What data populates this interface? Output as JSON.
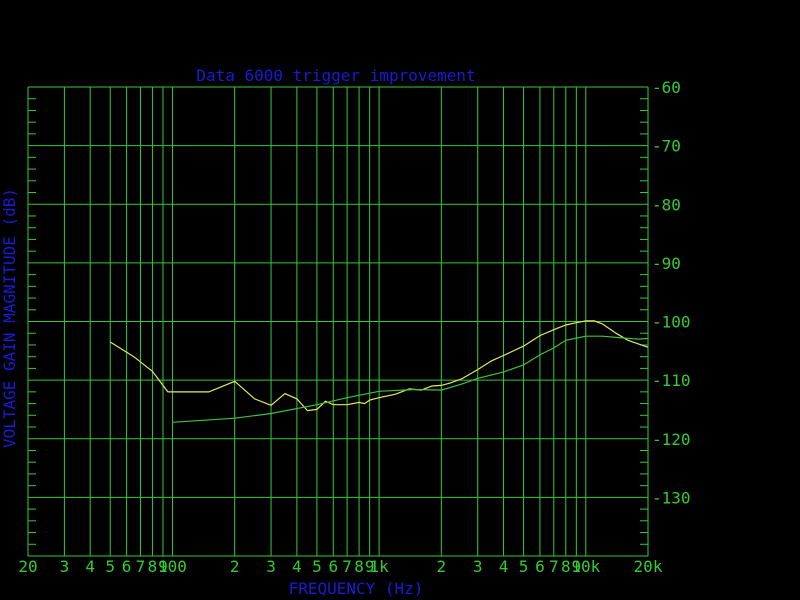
{
  "colors": {
    "background": "#000000",
    "grid": "#33cc33",
    "axis_text": "#33cc33",
    "title_text": "#1a1ad8",
    "series_measured": "#e8e85a",
    "series_reference": "#40c040"
  },
  "chart_data": {
    "type": "line",
    "title": "Data 6000 trigger improvement",
    "xlabel": "FREQUENCY (Hz)",
    "ylabel": "VOLTAGE GAIN MAGNITUDE (dB)",
    "xscale": "log",
    "xlim": [
      20,
      20000
    ],
    "ylim": [
      -140,
      -60
    ],
    "grid": true,
    "x_tick_labels": [
      {
        "value": 20,
        "label": "20"
      },
      {
        "value": 30,
        "label": "3"
      },
      {
        "value": 40,
        "label": "4"
      },
      {
        "value": 50,
        "label": "5"
      },
      {
        "value": 60,
        "label": "6"
      },
      {
        "value": 70,
        "label": "7"
      },
      {
        "value": 80,
        "label": "8"
      },
      {
        "value": 90,
        "label": "9"
      },
      {
        "value": 100,
        "label": "100"
      },
      {
        "value": 200,
        "label": "2"
      },
      {
        "value": 300,
        "label": "3"
      },
      {
        "value": 400,
        "label": "4"
      },
      {
        "value": 500,
        "label": "5"
      },
      {
        "value": 600,
        "label": "6"
      },
      {
        "value": 700,
        "label": "7"
      },
      {
        "value": 800,
        "label": "8"
      },
      {
        "value": 900,
        "label": "9"
      },
      {
        "value": 1000,
        "label": "1k"
      },
      {
        "value": 2000,
        "label": "2"
      },
      {
        "value": 3000,
        "label": "3"
      },
      {
        "value": 4000,
        "label": "4"
      },
      {
        "value": 5000,
        "label": "5"
      },
      {
        "value": 6000,
        "label": "6"
      },
      {
        "value": 7000,
        "label": "7"
      },
      {
        "value": 8000,
        "label": "8"
      },
      {
        "value": 9000,
        "label": "9"
      },
      {
        "value": 10000,
        "label": "10k"
      },
      {
        "value": 20000,
        "label": "20k"
      }
    ],
    "y_tick_labels": [
      {
        "value": -60,
        "label": "-60"
      },
      {
        "value": -70,
        "label": "-70"
      },
      {
        "value": -80,
        "label": "-80"
      },
      {
        "value": -90,
        "label": "-90"
      },
      {
        "value": -100,
        "label": "-100"
      },
      {
        "value": -110,
        "label": "-110"
      },
      {
        "value": -120,
        "label": "-120"
      },
      {
        "value": -130,
        "label": "-130"
      }
    ],
    "series": [
      {
        "color": "#e8e85a",
        "x": [
          50,
          65,
          80,
          95,
          150,
          200,
          250,
          300,
          350,
          400,
          450,
          500,
          550,
          600,
          700,
          800,
          850,
          900,
          1000,
          1200,
          1400,
          1600,
          1800,
          2000,
          2200,
          2500,
          3000,
          3500,
          4000,
          5000,
          6000,
          7000,
          8000,
          9000,
          10000,
          11000,
          12000,
          14000,
          16000,
          20000
        ],
        "y": [
          -103.5,
          -106,
          -108.5,
          -112,
          -112,
          -110.2,
          -113.2,
          -114.3,
          -112.3,
          -113.2,
          -115.2,
          -115.0,
          -113.6,
          -114.2,
          -114.2,
          -113.8,
          -114.0,
          -113.4,
          -113.0,
          -112.4,
          -111.5,
          -111.7,
          -111.0,
          -110.9,
          -110.5,
          -109.8,
          -108.2,
          -106.7,
          -105.8,
          -104.2,
          -102.4,
          -101.4,
          -100.6,
          -100.2,
          -99.9,
          -99.9,
          -100.4,
          -102.0,
          -103.2,
          -104.4
        ]
      },
      {
        "color": "#40c040",
        "x": [
          100,
          200,
          300,
          500,
          700,
          1000,
          1500,
          2000,
          2500,
          3000,
          4000,
          5000,
          6000,
          7000,
          8000,
          10000,
          12000,
          15000,
          18000,
          20000
        ],
        "y": [
          -117.2,
          -116.5,
          -115.7,
          -114.2,
          -113.0,
          -111.9,
          -111.6,
          -111.7,
          -110.7,
          -109.7,
          -108.6,
          -107.4,
          -105.7,
          -104.5,
          -103.2,
          -102.5,
          -102.5,
          -102.8,
          -103.0,
          -102.9
        ]
      }
    ]
  }
}
